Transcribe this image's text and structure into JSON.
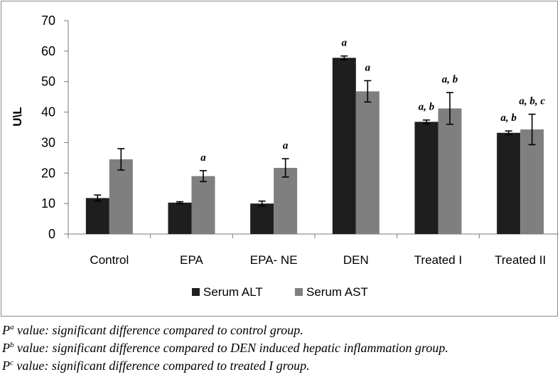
{
  "chart_data": {
    "type": "bar",
    "title": "",
    "xlabel": "",
    "ylabel": "U\\L",
    "ylim": [
      0,
      70
    ],
    "yticks": [
      "0",
      "10",
      "20",
      "30",
      "40",
      "50",
      "60",
      "70"
    ],
    "categories": [
      "Control",
      "EPA",
      "EPA- NE",
      "DEN",
      "Treated I",
      "Treated II"
    ],
    "series": [
      {
        "name": "Serum ALT",
        "color": "#1e1e1e",
        "values": [
          11.8,
          10.3,
          10.0,
          57.8,
          36.8,
          33.2
        ],
        "errors": [
          1.0,
          0.3,
          0.8,
          0.6,
          0.6,
          0.6
        ],
        "annotations": [
          "",
          "",
          "",
          "a",
          "a, b",
          "a, b"
        ]
      },
      {
        "name": "Serum AST",
        "color": "#7f7f7f",
        "values": [
          24.5,
          19.0,
          21.7,
          46.8,
          41.2,
          34.3
        ],
        "errors": [
          3.5,
          1.8,
          3.0,
          3.5,
          5.2,
          5.0
        ],
        "annotations": [
          "",
          "a",
          "a",
          "a",
          "a, b",
          "a, b, c"
        ]
      }
    ],
    "legend_position": "bottom"
  },
  "footnotes": [
    {
      "p": "P",
      "sup": "a",
      "text": " value: significant difference compared to control group."
    },
    {
      "p": "P",
      "sup": "b",
      "text": " value: significant difference compared to DEN induced hepatic inflammation group."
    },
    {
      "p": "P",
      "sup": "c",
      "text": " value: significant difference compared to treated I group."
    }
  ]
}
